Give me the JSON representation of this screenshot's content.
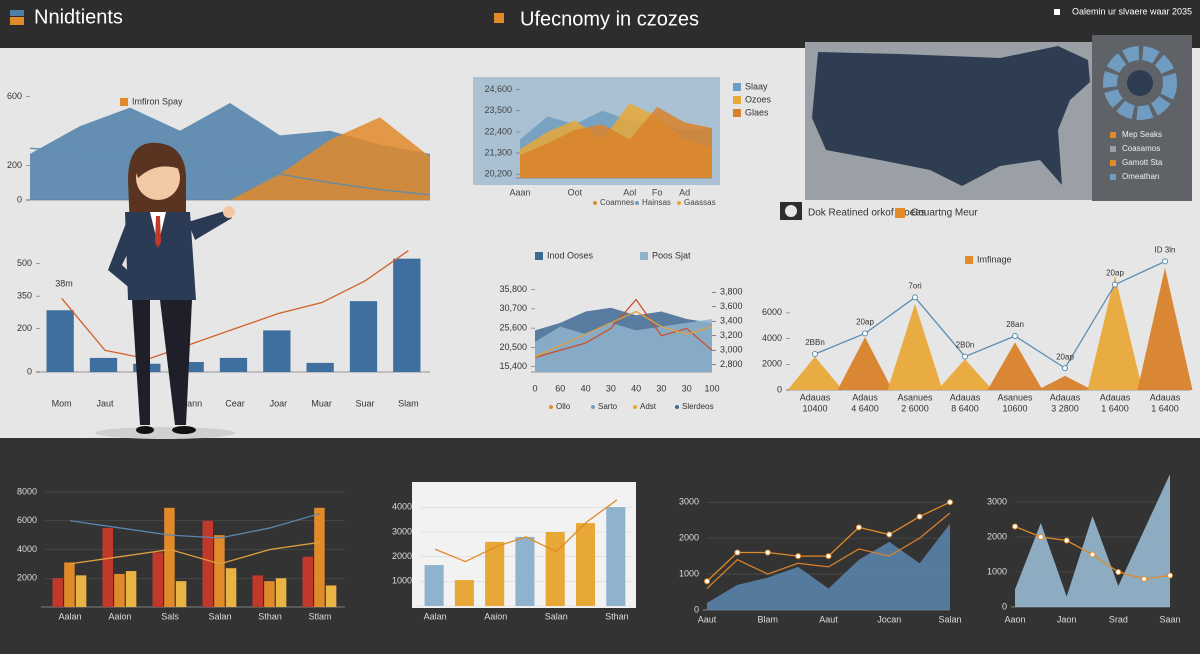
{
  "header": {
    "left_title": "Nnidtients",
    "center_title": "Ufecnomy in czozes",
    "right_note": "Oalemin ur slvaere waar 2035"
  },
  "map_panel": {
    "labels": [
      {
        "text": "Mep Seaks",
        "color": "#e08a2a"
      },
      {
        "text": "Coasamos",
        "color": "#9aa0a6"
      },
      {
        "text": "Gamott Sta",
        "color": "#e08a2a"
      },
      {
        "text": "Omeathan",
        "color": "#6f9cc0"
      }
    ],
    "legend": [
      {
        "text": "Dok Reatined orkof Ooees",
        "color": "#2d2d2d"
      },
      {
        "text": "Couartng Meur",
        "color": "#e08a2a"
      }
    ]
  },
  "chart_data": [
    {
      "type": "area",
      "ylim": [
        0,
        650
      ],
      "yticks": [
        0,
        200,
        600
      ],
      "series": [
        {
          "color": "#4e7fa8",
          "values": [
            268,
            429,
            536,
            402,
            563,
            375,
            402,
            321,
            268
          ]
        },
        {
          "name": "Imfiron Spay",
          "color": "#e08a2a",
          "values": [
            0,
            0,
            0,
            0,
            0,
            150,
            350,
            480,
            250
          ]
        },
        {
          "color": "#5b8eb0",
          "kind": "line",
          "values": [
            300,
            280,
            250,
            200,
            180,
            150,
            100,
            60,
            30
          ]
        }
      ]
    },
    {
      "type": "bar",
      "annotation": "38m",
      "categories": [
        "Mom",
        "Jaut",
        null,
        "Aann",
        "Cear",
        "Joar",
        "Muar",
        "Suar",
        "Slam"
      ],
      "ylim": [
        0,
        600
      ],
      "yticks": [
        0,
        200,
        350,
        500
      ],
      "series": [
        {
          "color": "#3f6f9f",
          "values": [
            285,
            65,
            38,
            46,
            65,
            192,
            42,
            327,
            523
          ]
        },
        {
          "color": "#d0622a",
          "kind": "line",
          "values": [
            340,
            100,
            60,
            130,
            200,
            270,
            320,
            420,
            560
          ]
        }
      ]
    },
    {
      "type": "area",
      "categories": [
        "Aaan",
        null,
        "Oot",
        null,
        "Aol",
        "Fo",
        "Ad",
        null
      ],
      "ylim": [
        20000,
        25000
      ],
      "yticks": [
        {
          "value": 20200,
          "label": "20,200"
        },
        {
          "value": 21300,
          "label": "21,300"
        },
        {
          "value": 22400,
          "label": "22,400"
        },
        {
          "value": 23500,
          "label": "23,500"
        },
        {
          "value": 24600,
          "label": "24,600"
        }
      ],
      "notes": [
        "Coamnes",
        "Hainsas",
        "Gaassas"
      ],
      "series": [
        {
          "name": "Slaay",
          "color": "#6f9cc0",
          "values": [
            22000,
            23200,
            22800,
            23500,
            23000,
            22800,
            22500,
            22600
          ]
        },
        {
          "name": "Ozoes",
          "color": "#e8a838",
          "values": [
            21500,
            22400,
            23000,
            22000,
            23900,
            23200,
            22000,
            21600
          ]
        },
        {
          "name": "Glaes",
          "color": "#d9822b",
          "values": [
            21200,
            21800,
            22500,
            22800,
            22000,
            23700,
            22900,
            22600
          ]
        }
      ]
    },
    {
      "type": "area",
      "categories": [
        "0",
        "60",
        "40",
        "30",
        "40",
        "30",
        "30",
        "100"
      ],
      "ylim": [
        14000,
        37000
      ],
      "yticks": [
        {
          "value": 15400,
          "label": "15,400"
        },
        {
          "value": 20500,
          "label": "20,500"
        },
        {
          "value": 25600,
          "label": "25,600"
        },
        {
          "value": 30700,
          "label": "30,700"
        },
        {
          "value": 35800,
          "label": "35,800"
        }
      ],
      "y2lim": [
        2700,
        3900
      ],
      "y2ticks": [
        {
          "value": 2800,
          "label": "2,800"
        },
        {
          "value": 3000,
          "label": "3,000"
        },
        {
          "value": 3200,
          "label": "3,200"
        },
        {
          "value": 3400,
          "label": "3,400"
        },
        {
          "value": 3600,
          "label": "3,600"
        },
        {
          "value": 3800,
          "label": "3,800"
        }
      ],
      "notes": [
        "Ollo",
        "Sarto",
        "Adst",
        "Slerdeos"
      ],
      "series": [
        {
          "name": "Inod Ooses",
          "color": "#3e6a94",
          "values": [
            25000,
            27000,
            30000,
            31000,
            29000,
            30000,
            28000,
            27000
          ]
        },
        {
          "name": "Poos Sjat",
          "color": "#8fb3cc",
          "values": [
            22000,
            26000,
            24000,
            27000,
            25000,
            26000,
            27000,
            28000
          ]
        },
        {
          "color": "#c8502f",
          "kind": "line",
          "axis": "y2",
          "values": [
            2900,
            3000,
            3100,
            3300,
            3700,
            3200,
            3300,
            3000
          ]
        },
        {
          "color": "#e0a040",
          "kind": "line",
          "values": [
            18000,
            21000,
            24000,
            27000,
            30000,
            26000,
            24000,
            26000
          ]
        }
      ]
    },
    {
      "type": "peaks",
      "categories": [
        "Adauas",
        "Adaus",
        "Asanues",
        "Adauas",
        "Asanues",
        "Adauas",
        "Adauas",
        "Adauas"
      ],
      "category_sublabels": [
        "10400",
        "4 6400",
        "2 6000",
        "8 6400",
        "10600",
        "3 2800",
        "1 6400",
        "1 6400"
      ],
      "annotations": [
        "2BBn",
        "20ap",
        "7ori",
        "2B0n",
        "28an",
        "20ap",
        "20ap",
        "ID 3ln"
      ],
      "ylim": [
        0,
        10500
      ],
      "yticks": [
        0,
        2000,
        4000,
        6000
      ],
      "series": [
        {
          "name": "Imfinage",
          "color": "#e08a2a",
          "kind": "peaks",
          "colors": [
            "#e9a93a",
            "#d9822b",
            "#e9a93a",
            "#e9a93a",
            "#d9822b",
            "#d9822b",
            "#e9a93a",
            "#d9822b"
          ],
          "values": [
            2600,
            4100,
            6700,
            2400,
            3700,
            1100,
            8900,
            9500
          ]
        },
        {
          "color": "#5b8eb0",
          "kind": "line",
          "markers": true,
          "values": [
            2800,
            4400,
            7200,
            2600,
            4200,
            1700,
            8200,
            10000
          ]
        }
      ]
    },
    {
      "type": "bar",
      "categories": [
        "Aalan",
        "Aaion",
        "Sals",
        "Salan",
        "Sthan",
        "Stlam"
      ],
      "ylim": [
        0,
        8000
      ],
      "yticks": [
        2000,
        4000,
        6000,
        8000
      ],
      "grid": true,
      "series": [
        {
          "color": "#c0392b",
          "values": [
            2000,
            5500,
            3800,
            6000,
            2200,
            3500
          ]
        },
        {
          "color": "#e08a2a",
          "values": [
            3100,
            2300,
            6900,
            5000,
            1800,
            6900
          ]
        },
        {
          "color": "#e9b444",
          "values": [
            2200,
            2500,
            1800,
            2700,
            2000,
            1500
          ]
        },
        {
          "color": "#5a87b0",
          "kind": "line",
          "values": [
            6000,
            5500,
            5000,
            4800,
            5500,
            6500
          ]
        },
        {
          "color": "#e0a040",
          "kind": "line",
          "values": [
            3000,
            3500,
            4000,
            3000,
            4000,
            4500
          ]
        }
      ]
    },
    {
      "type": "bar",
      "categories": [
        "Aalan",
        null,
        "Aaion",
        null,
        "Salan",
        null,
        "Sthan"
      ],
      "ylim": [
        0,
        4500
      ],
      "yticks": [
        1000,
        2000,
        3000,
        4000
      ],
      "grid": true,
      "series": [
        {
          "color": "#8fb3cc",
          "colors": [
            "#8fb3cc",
            "#e8a838",
            "#e8a838",
            "#8fb3cc",
            "#e8a838",
            "#e8a838",
            "#8fb3cc"
          ],
          "values": [
            1660,
            1050,
            2600,
            2800,
            3000,
            3360,
            4010
          ]
        },
        {
          "color": "#e08a2a",
          "kind": "line",
          "values": [
            2300,
            1800,
            2400,
            2800,
            2200,
            3400,
            4300
          ]
        }
      ]
    },
    {
      "type": "area",
      "categories": [
        "Aaut",
        null,
        "Blam",
        null,
        "Aaut",
        null,
        "Jocan",
        null,
        "Salan"
      ],
      "ylim": [
        0,
        3200
      ],
      "yticks": [
        0,
        1000,
        2000,
        3000
      ],
      "grid": true,
      "series": [
        {
          "color": "#5a87b0",
          "values": [
            200,
            700,
            900,
            1200,
            600,
            1400,
            1900,
            1300,
            2400
          ]
        },
        {
          "color": "#e08a2a",
          "kind": "line",
          "markers": true,
          "values": [
            800,
            1600,
            1600,
            1500,
            1500,
            2300,
            2100,
            2600,
            3000
          ]
        },
        {
          "color": "#d9822b",
          "kind": "line",
          "values": [
            600,
            1400,
            1000,
            1300,
            1200,
            1700,
            1500,
            2000,
            2700
          ]
        }
      ]
    },
    {
      "type": "area",
      "categories": [
        "Aaon",
        null,
        "Jaon",
        null,
        "Srad",
        null,
        "Saan"
      ],
      "ylim": [
        0,
        3200
      ],
      "yticks": [
        0,
        1000,
        2000,
        3000
      ],
      "grid": true,
      "series": [
        {
          "color": "#9fc2da",
          "values": [
            500,
            2400,
            300,
            2600,
            600,
            2200,
            3800
          ]
        },
        {
          "color": "#e08a2a",
          "kind": "line",
          "markers": true,
          "values": [
            2300,
            2000,
            1900,
            1500,
            1000,
            800,
            900
          ]
        }
      ]
    }
  ]
}
